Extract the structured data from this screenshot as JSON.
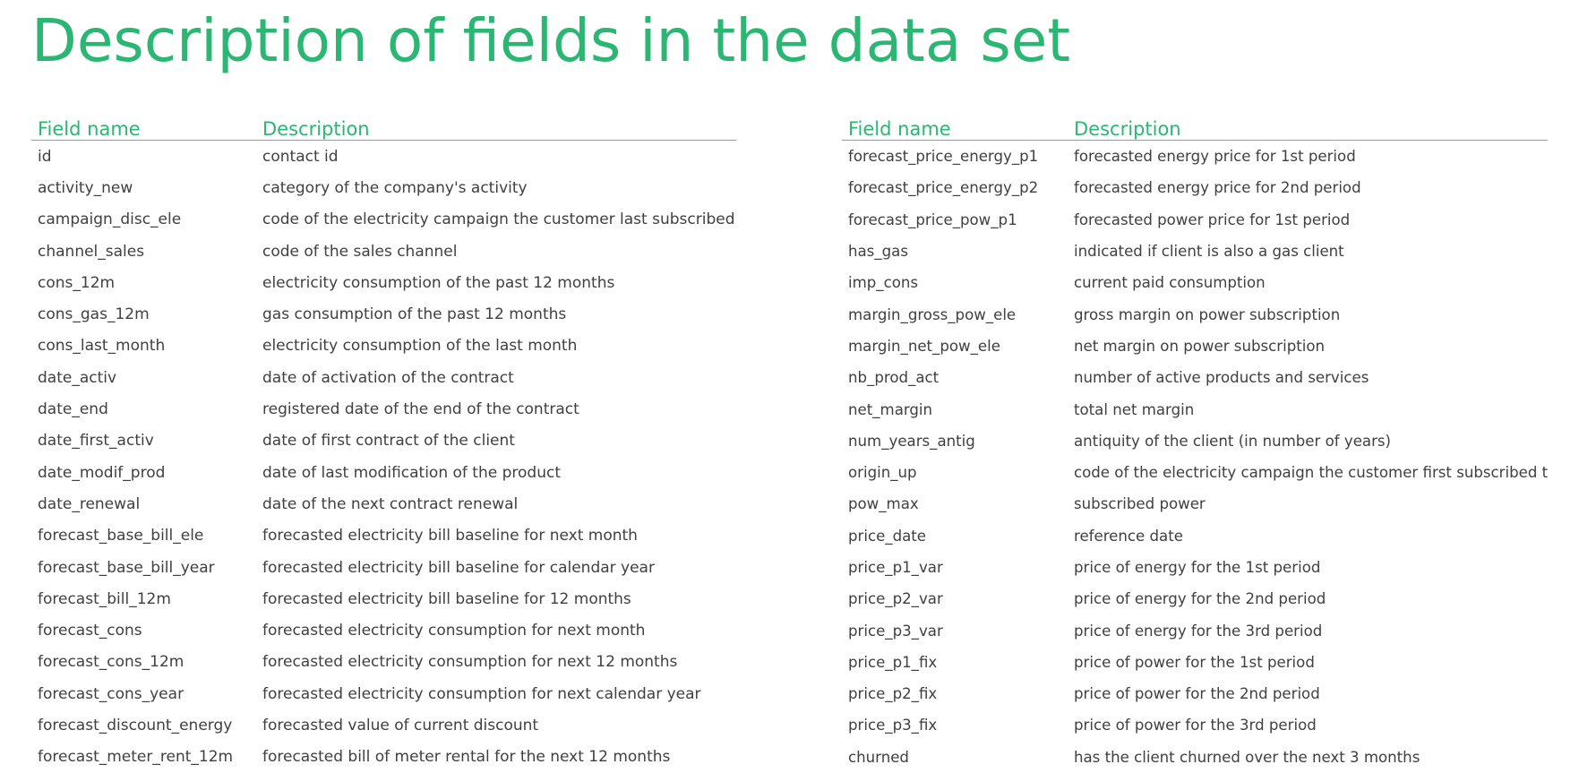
{
  "colors": {
    "accent": "#2bb673",
    "text": "#404040",
    "rule": "#9a9a9a"
  },
  "title": "Description of fields in the data set",
  "tables": [
    {
      "headers": [
        "Field name",
        "Description"
      ],
      "rows": [
        [
          "id",
          "contact id"
        ],
        [
          "activity_new",
          "category of the company's activity"
        ],
        [
          "campaign_disc_ele",
          "code of the electricity campaign the customer last subscribed to"
        ],
        [
          "channel_sales",
          "code of the sales channel"
        ],
        [
          "cons_12m",
          "electricity consumption of the past 12 months"
        ],
        [
          "cons_gas_12m",
          "gas consumption of the past 12 months"
        ],
        [
          "cons_last_month",
          "electricity consumption of the last month"
        ],
        [
          "date_activ",
          "date of activation of the contract"
        ],
        [
          "date_end",
          "registered date of the end of the contract"
        ],
        [
          "date_first_activ",
          "date of first contract of the client"
        ],
        [
          "date_modif_prod",
          "date of last modification of the product"
        ],
        [
          "date_renewal",
          "date of the next contract renewal"
        ],
        [
          "forecast_base_bill_ele",
          "forecasted electricity bill baseline for next month"
        ],
        [
          "forecast_base_bill_year",
          "forecasted electricity bill baseline for calendar year"
        ],
        [
          "forecast_bill_12m",
          "forecasted electricity bill baseline for 12 months"
        ],
        [
          "forecast_cons",
          "forecasted electricity consumption for next month"
        ],
        [
          "forecast_cons_12m",
          "forecasted electricity consumption for next 12 months"
        ],
        [
          "forecast_cons_year",
          "forecasted electricity consumption for next calendar year"
        ],
        [
          "forecast_discount_energy",
          "forecasted value of current discount"
        ],
        [
          "forecast_meter_rent_12m",
          "forecasted bill of meter rental for the next 12 months"
        ]
      ]
    },
    {
      "headers": [
        "Field name",
        "Description"
      ],
      "rows": [
        [
          "forecast_price_energy_p1",
          "forecasted energy price for 1st period"
        ],
        [
          "forecast_price_energy_p2",
          "forecasted energy price for 2nd period"
        ],
        [
          "forecast_price_pow_p1",
          "forecasted power price for 1st period"
        ],
        [
          "has_gas",
          "indicated if client is also a gas client"
        ],
        [
          "imp_cons",
          "current paid consumption"
        ],
        [
          "margin_gross_pow_ele",
          "gross margin on power subscription"
        ],
        [
          "margin_net_pow_ele",
          "net margin on power subscription"
        ],
        [
          "nb_prod_act",
          "number of active products and services"
        ],
        [
          "net_margin",
          "total net margin"
        ],
        [
          "num_years_antig",
          "antiquity of the client (in number of years)"
        ],
        [
          "origin_up",
          "code of the electricity campaign the customer first subscribed to"
        ],
        [
          "pow_max",
          "subscribed power"
        ],
        [
          "price_date",
          "reference date"
        ],
        [
          "price_p1_var",
          "price of energy for the 1st period"
        ],
        [
          "price_p2_var",
          "price of energy for the 2nd period"
        ],
        [
          "price_p3_var",
          "price of energy for the 3rd period"
        ],
        [
          "price_p1_fix",
          "price of power for the 1st period"
        ],
        [
          "price_p2_fix",
          "price of power for the 2nd period"
        ],
        [
          "price_p3_fix",
          "price of power for the 3rd period"
        ],
        [
          "churned",
          "has the client churned over the next 3 months"
        ]
      ]
    }
  ]
}
